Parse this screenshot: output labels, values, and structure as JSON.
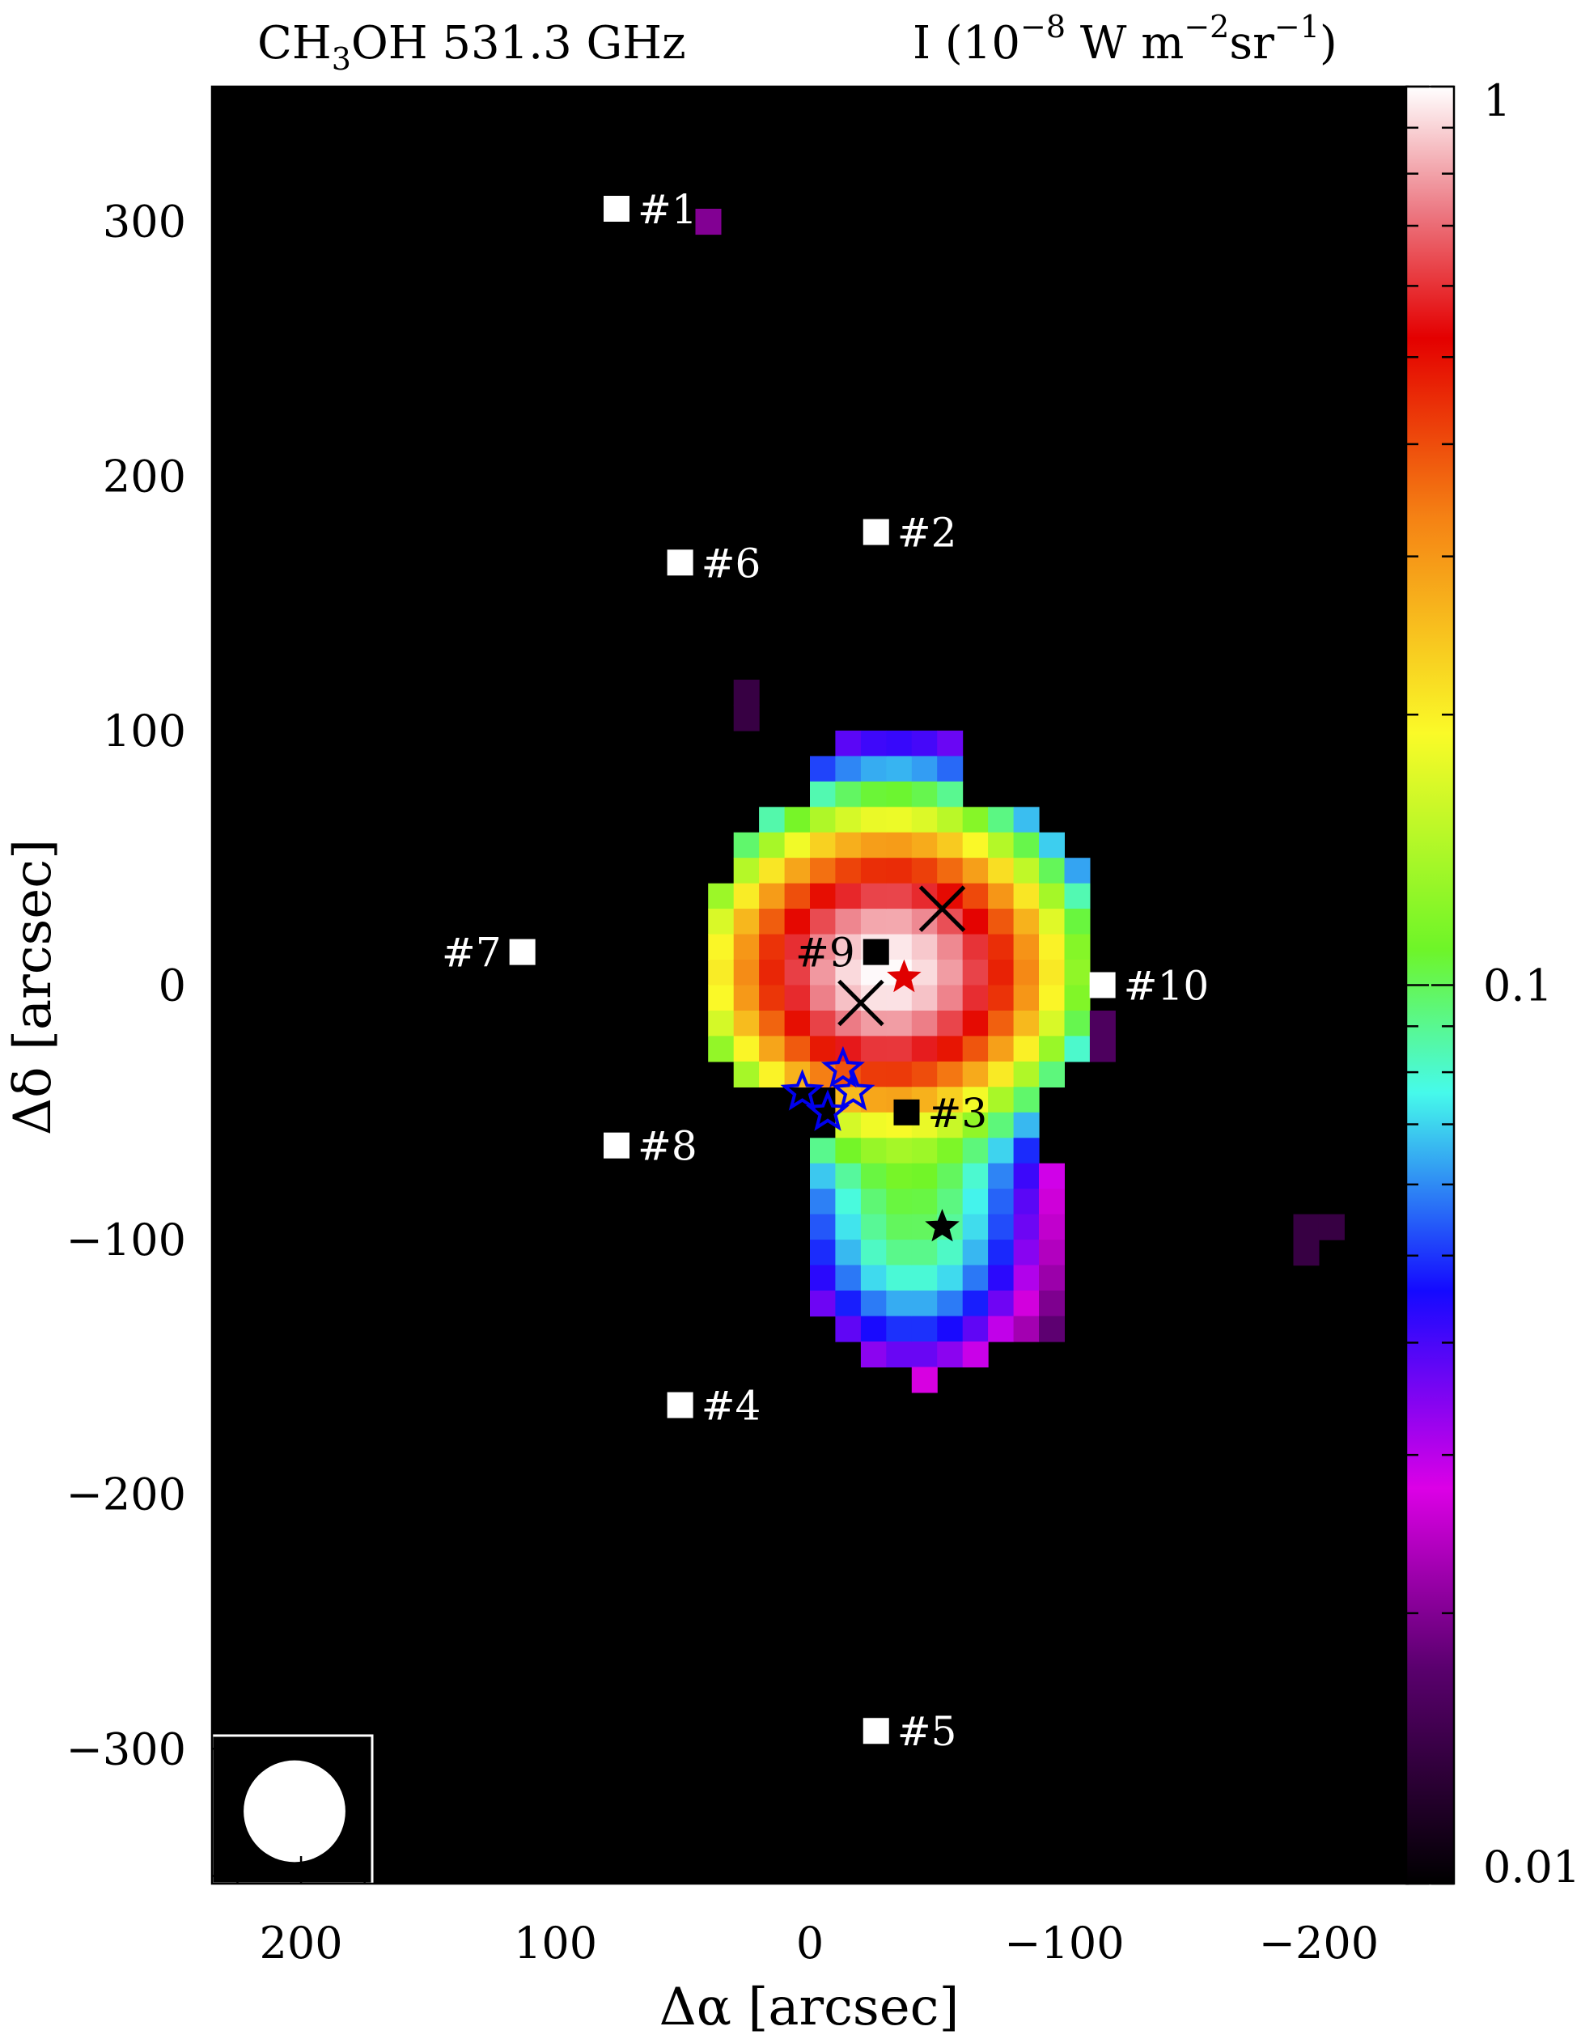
{
  "chart_data": {
    "type": "heatmap",
    "title_left": "CH₃OH 531.3 GHz",
    "title_left_parts": {
      "pre": "CH",
      "sub": "3",
      "post": "OH 531.3 GHz"
    },
    "title_right": "I (10⁻⁸ W m⁻²sr⁻¹)",
    "title_right_parts": {
      "a": "I (10",
      "e1": "−8",
      "b": " W m",
      "e2": "−2",
      "c": "sr",
      "e3": "−1",
      "d": ")"
    },
    "xlabel": "Δα [arcsec]",
    "ylabel": "Δδ [arcsec]",
    "xlim": [
      235,
      -235
    ],
    "ylim": [
      -353,
      353
    ],
    "x_ticks": [
      200,
      100,
      0,
      -100,
      -200
    ],
    "x_tick_labels": [
      "200",
      "100",
      "0",
      "−100",
      "−200"
    ],
    "y_ticks": [
      300,
      200,
      100,
      0,
      -100,
      -200,
      -300
    ],
    "y_tick_labels": [
      "300",
      "200",
      "100",
      "0",
      "−100",
      "−200",
      "−300"
    ],
    "colorbar": {
      "scale": "log",
      "range": [
        0.01,
        1
      ],
      "tick_labels": [
        "1",
        "0.1",
        "0.01"
      ],
      "tick_values": [
        1,
        0.1,
        0.01
      ]
    },
    "pixel_size_arcsec": 10,
    "blobs": [
      {
        "name": "north",
        "x": -30,
        "y": 5,
        "sx": 36,
        "sy": 30,
        "peak": 0.95
      },
      {
        "name": "north-ext",
        "x": -35,
        "y": 40,
        "sx": 35,
        "sy": 40,
        "peak": 0.05
      },
      {
        "name": "south",
        "x": -40,
        "y": -92,
        "sx": 28,
        "sy": 34,
        "peak": 0.085
      }
    ],
    "mask_polygon": [
      [
        -10,
        100
      ],
      [
        -60,
        100
      ],
      [
        -62,
        75
      ],
      [
        -92,
        62
      ],
      [
        -108,
        48
      ],
      [
        -110,
        -20
      ],
      [
        -100,
        -40
      ],
      [
        -92,
        -45
      ],
      [
        -92,
        -70
      ],
      [
        -102,
        -75
      ],
      [
        -102,
        -135
      ],
      [
        -85,
        -140
      ],
      [
        -60,
        -150
      ],
      [
        -45,
        -158
      ],
      [
        -25,
        -150
      ],
      [
        -10,
        -140
      ],
      [
        0,
        -112
      ],
      [
        0,
        -78
      ],
      [
        -5,
        -60
      ],
      [
        -5,
        -45
      ],
      [
        30,
        -43
      ],
      [
        40,
        -20
      ],
      [
        42,
        15
      ],
      [
        35,
        40
      ],
      [
        25,
        62
      ],
      [
        5,
        70
      ],
      [
        -5,
        92
      ]
    ],
    "isolated_pixels": [
      {
        "x": 40,
        "y": 300,
        "v": 0.02
      },
      {
        "x": 25,
        "y": 115,
        "v": 0.014
      },
      {
        "x": 25,
        "y": 105,
        "v": 0.014
      },
      {
        "x": -115,
        "y": -15,
        "v": 0.016
      },
      {
        "x": -115,
        "y": -25,
        "v": 0.016
      },
      {
        "x": -195,
        "y": -95,
        "v": 0.014
      },
      {
        "x": -205,
        "y": -95,
        "v": 0.014
      },
      {
        "x": -195,
        "y": -105,
        "v": 0.014
      }
    ],
    "positions": [
      {
        "label": "#1",
        "x": 76,
        "y": 305,
        "color": "#ffffff",
        "side": "right"
      },
      {
        "label": "#2",
        "x": -26,
        "y": 178,
        "color": "#ffffff",
        "side": "right"
      },
      {
        "label": "#3",
        "x": -38,
        "y": -50,
        "color": "#000000",
        "side": "right"
      },
      {
        "label": "#4",
        "x": 51,
        "y": -165,
        "color": "#ffffff",
        "side": "right"
      },
      {
        "label": "#5",
        "x": -26,
        "y": -293,
        "color": "#ffffff",
        "side": "right"
      },
      {
        "label": "#6",
        "x": 51,
        "y": 166,
        "color": "#ffffff",
        "side": "right"
      },
      {
        "label": "#7",
        "x": 113,
        "y": 13,
        "color": "#ffffff",
        "side": "left"
      },
      {
        "label": "#8",
        "x": 76,
        "y": -63,
        "color": "#ffffff",
        "side": "right"
      },
      {
        "label": "#9",
        "x": -26,
        "y": 13,
        "color": "#000000",
        "side": "left"
      },
      {
        "label": "#10",
        "x": -115,
        "y": 0,
        "color": "#ffffff",
        "side": "right"
      }
    ],
    "crosses": [
      {
        "x": -52,
        "y": 30
      },
      {
        "x": -20,
        "y": -7
      }
    ],
    "stars": [
      {
        "x": -37,
        "y": 3,
        "color": "#e00000"
      },
      {
        "x": -52,
        "y": -95,
        "color": "#000000"
      },
      {
        "x": 3,
        "y": -42,
        "color": "#0000ee"
      },
      {
        "x": -13,
        "y": -33,
        "color": "#0000ee"
      },
      {
        "x": -17,
        "y": -42,
        "color": "#0000ee"
      },
      {
        "x": -7,
        "y": -50,
        "color": "#0000ee"
      }
    ],
    "beam": {
      "fwhm_arcsec": 40
    }
  }
}
